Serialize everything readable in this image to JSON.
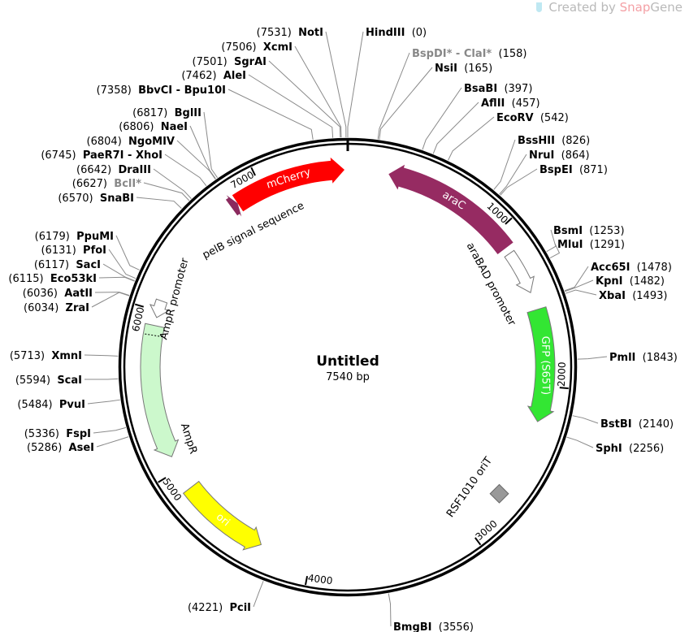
{
  "map": {
    "title": "Untitled",
    "length_label": "7540 bp",
    "length_bp": 7540
  },
  "watermark": {
    "prefix": "Created by ",
    "brand_a": "Snap",
    "brand_b": "Gene"
  },
  "ticks": [
    "1000",
    "2000",
    "3000",
    "4000",
    "5000",
    "6000",
    "7000"
  ],
  "features": [
    {
      "name": "mCherry",
      "start": 6830,
      "end": 7520,
      "strand": "fwd",
      "color": "#ff0000",
      "label_inside": true
    },
    {
      "name": "pelB signal sequence",
      "start": 6785,
      "end": 6830,
      "strand": "fwd",
      "color": "#8b2a5e",
      "label_inside": false
    },
    {
      "name": "araC",
      "start": 250,
      "end": 1110,
      "strand": "rev",
      "color": "#962b62",
      "label_inside": true
    },
    {
      "name": "araBAD promoter",
      "start": 1150,
      "end": 1420,
      "strand": "fwd",
      "color": "#ffffff",
      "label_inside": false
    },
    {
      "name": "GFP (S65T)",
      "start": 1530,
      "end": 2220,
      "strand": "fwd",
      "color": "#33e633",
      "label_inside": true
    },
    {
      "name": "RSF1010 oriT",
      "start": 2700,
      "end": 2740,
      "strand": "none",
      "color": "#999999",
      "label_inside": false
    },
    {
      "name": "ori",
      "start": 4315,
      "end": 4870,
      "strand": "rev",
      "color": "#ffff00",
      "label_inside": true,
      "dark_text": true
    },
    {
      "name": "AmpR",
      "start": 5090,
      "end": 5910,
      "strand": "rev",
      "color": "#ccf8cc",
      "label_inside": false
    },
    {
      "name": "AmpR promoter",
      "start": 5960,
      "end": 6065,
      "strand": "rev",
      "color": "#ffffff",
      "label_inside": false
    }
  ],
  "enzymes": [
    {
      "name": "NotI",
      "pos": 7531
    },
    {
      "name": "XcmI",
      "pos": 7506
    },
    {
      "name": "SgrAI",
      "pos": 7501
    },
    {
      "name": "AleI",
      "pos": 7462
    },
    {
      "name": "BbvCI - Bpu10I",
      "pos": 7358
    },
    {
      "name": "BglII",
      "pos": 6817
    },
    {
      "name": "NaeI",
      "pos": 6806
    },
    {
      "name": "NgoMIV",
      "pos": 6804
    },
    {
      "name": "PaeR7I - XhoI",
      "pos": 6745
    },
    {
      "name": "DraIII",
      "pos": 6642
    },
    {
      "name": "BclI*",
      "pos": 6627,
      "gray": true
    },
    {
      "name": "SnaBI",
      "pos": 6570
    },
    {
      "name": "PpuMI",
      "pos": 6179
    },
    {
      "name": "PfoI",
      "pos": 6131
    },
    {
      "name": "SacI",
      "pos": 6117
    },
    {
      "name": "Eco53kI",
      "pos": 6115
    },
    {
      "name": "AatII",
      "pos": 6036
    },
    {
      "name": "ZraI",
      "pos": 6034
    },
    {
      "name": "XmnI",
      "pos": 5713
    },
    {
      "name": "ScaI",
      "pos": 5594
    },
    {
      "name": "PvuI",
      "pos": 5484
    },
    {
      "name": "FspI",
      "pos": 5336
    },
    {
      "name": "AseI",
      "pos": 5286
    },
    {
      "name": "PciI",
      "pos": 4221
    },
    {
      "name": "HindIII",
      "pos": 0
    },
    {
      "name": "BspDI* - ClaI*",
      "pos": 158,
      "gray": true
    },
    {
      "name": "NsiI",
      "pos": 165
    },
    {
      "name": "BsaBI",
      "pos": 397
    },
    {
      "name": "AflII",
      "pos": 457
    },
    {
      "name": "EcoRV",
      "pos": 542
    },
    {
      "name": "BssHII",
      "pos": 826
    },
    {
      "name": "NruI",
      "pos": 864
    },
    {
      "name": "BspEI",
      "pos": 871
    },
    {
      "name": "BsmI",
      "pos": 1253
    },
    {
      "name": "MluI",
      "pos": 1291
    },
    {
      "name": "Acc65I",
      "pos": 1478
    },
    {
      "name": "KpnI",
      "pos": 1482
    },
    {
      "name": "XbaI",
      "pos": 1493
    },
    {
      "name": "PmlI",
      "pos": 1843
    },
    {
      "name": "BstBI",
      "pos": 2140
    },
    {
      "name": "SphI",
      "pos": 2256
    },
    {
      "name": "BmgBI",
      "pos": 3556
    }
  ]
}
